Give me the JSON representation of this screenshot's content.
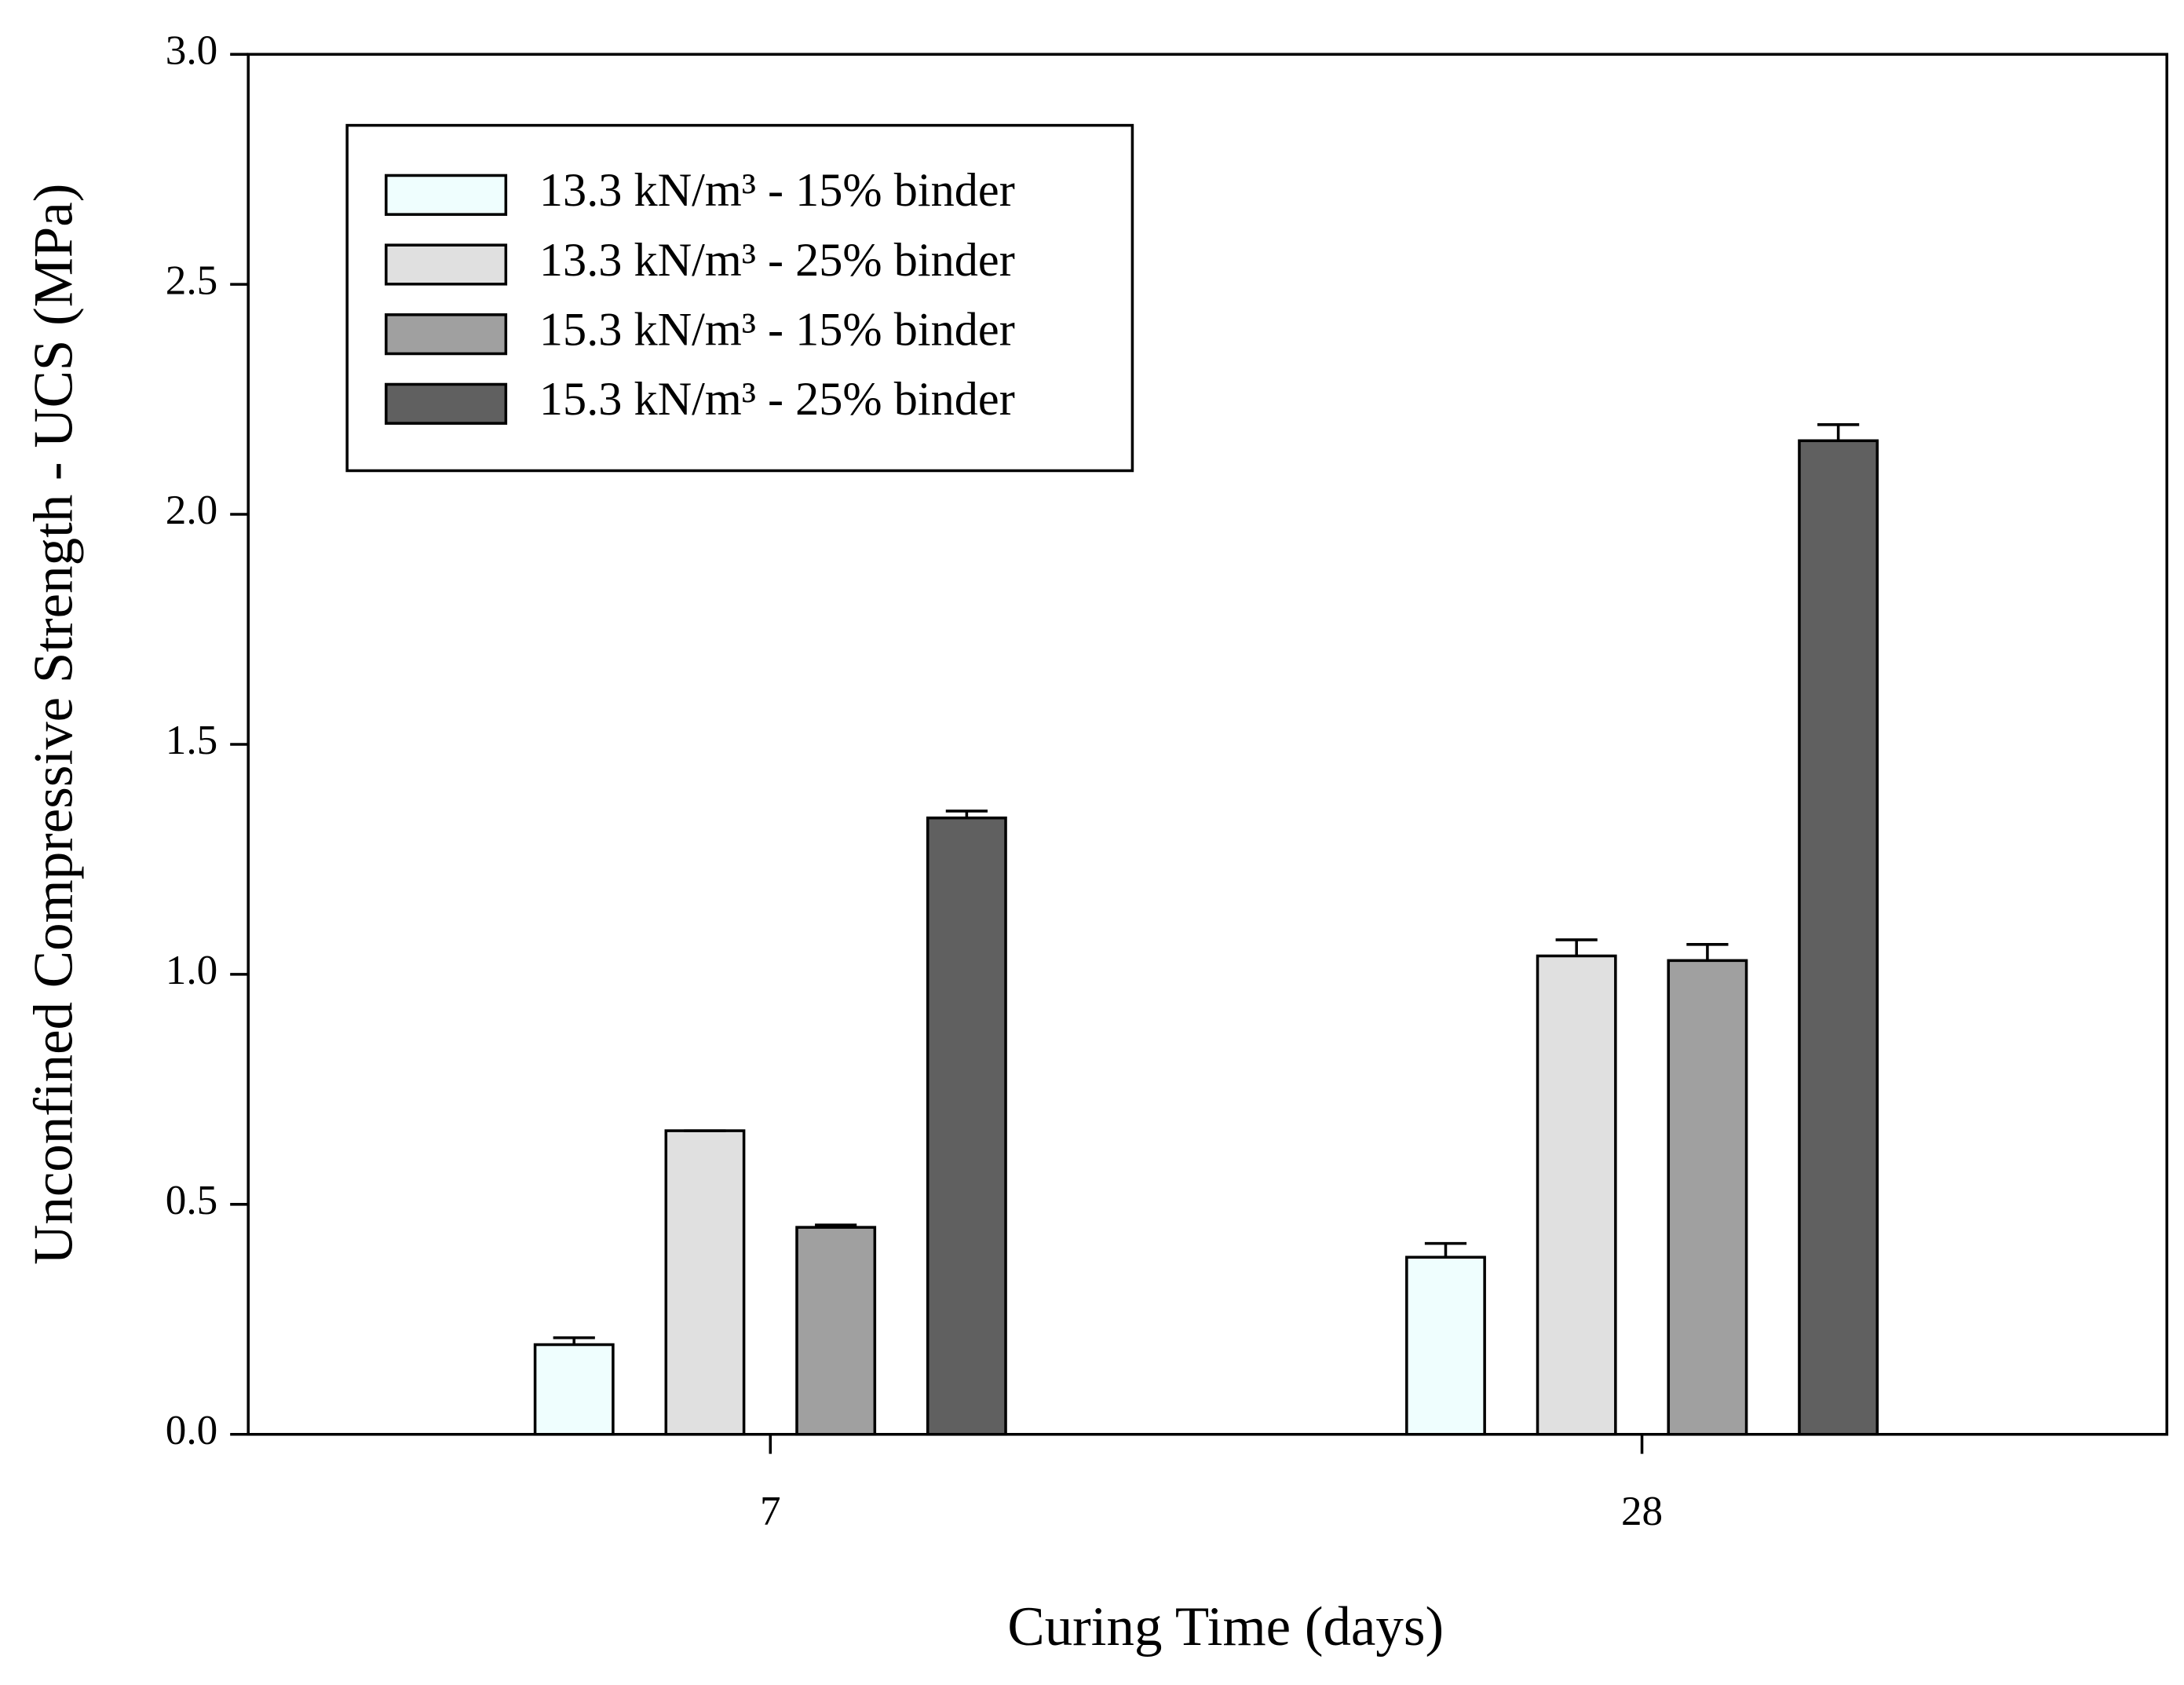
{
  "chart_data": {
    "type": "bar",
    "x_label": "Curing Time (days)",
    "y_label": "Unconfined Compressive Strength - UCS (MPa)",
    "categories": [
      "7",
      "28"
    ],
    "series": [
      {
        "name": "13.3 kN/m³ - 15% binder",
        "color": "#effefe",
        "values": [
          0.195,
          0.385
        ],
        "errors": [
          0.015,
          0.03
        ]
      },
      {
        "name": "13.3 kN/m³ - 25% binder",
        "color": "#e0e0e0",
        "values": [
          0.66,
          1.04
        ],
        "errors": [
          0,
          0.035
        ]
      },
      {
        "name": "15.3 kN/m³ - 15% binder",
        "color": "#a0a0a0",
        "values": [
          0.45,
          1.03
        ],
        "errors": [
          0.005,
          0.035
        ]
      },
      {
        "name": "15.3 kN/m³ - 25% binder",
        "color": "#606060",
        "values": [
          1.34,
          2.16
        ],
        "errors": [
          0.015,
          0.035
        ]
      }
    ],
    "ylim": [
      0,
      3
    ],
    "yticks": [
      {
        "value": 0,
        "label": "0.0"
      },
      0.5,
      {
        "value": 1,
        "label": "1.0"
      },
      1.5,
      {
        "value": 2,
        "label": "2.0"
      },
      2.5,
      {
        "value": 3,
        "label": "3.0"
      }
    ],
    "legend": "upper left"
  }
}
